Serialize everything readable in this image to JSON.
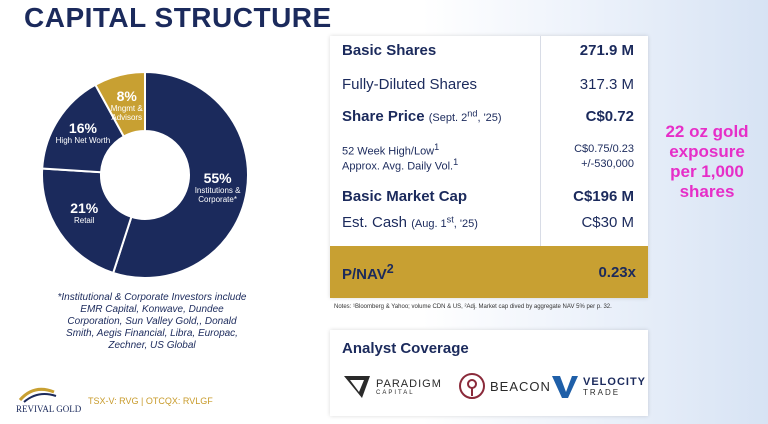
{
  "title": "CAPITAL STRUCTURE",
  "chart_data": {
    "type": "pie",
    "categories": [
      "Institutions & Corporate*",
      "Retail",
      "High Net Worth",
      "Mngmt & Advisors"
    ],
    "values": [
      55,
      21,
      16,
      8
    ],
    "labels": [
      "55%",
      "21%",
      "16%",
      "8%"
    ],
    "colors": [
      "#1b2a5c",
      "#1b2a5c",
      "#1b2a5c",
      "#c8a032"
    ]
  },
  "footnote": "*Institutional & Corporate Investors include EMR Capital, Konwave, Dundee Corporation, Sun Valley Gold,, Donald Smith, Aegis Financial, Libra, Europac, Zechner, US Global",
  "company": {
    "name": "REVIVAL GOLD",
    "ticker": "TSX-V: RVG | OTCQX: RVLGF"
  },
  "table": {
    "basic_shares": {
      "label": "Basic Shares",
      "value": "271.9 M"
    },
    "fd_shares": {
      "label": "Fully-Diluted Shares",
      "value": "317.3 M"
    },
    "share_price": {
      "label": "Share Price",
      "note_pre": "(Sept. 2",
      "note_sup": "nd",
      "note_post": ", '25)",
      "value": "C$0.72"
    },
    "week_high_low": {
      "label": "52 Week High/Low",
      "sup": "1",
      "value": "C$0.75/0.23"
    },
    "avg_volume": {
      "label": "Approx. Avg. Daily Vol.",
      "sup": "1",
      "value": "+/-530,000"
    },
    "market_cap": {
      "label": "Basic Market Cap",
      "value": "C$196 M"
    },
    "cash": {
      "label": "Est. Cash",
      "note_pre": "(Aug. 1",
      "note_sup": "st",
      "note_post": ", '25)",
      "value": "C$30 M"
    },
    "pnav": {
      "label": "P/NAV",
      "sup": "2",
      "value": "0.23x"
    }
  },
  "notes": "Notes: ¹Bloomberg & Yahoo; volume CDN & US, ²Adj. Market cap dived by aggregate NAV 5% per p. 32.",
  "callout": "22 oz gold exposure per 1,000 shares",
  "analyst": {
    "heading": "Analyst Coverage",
    "firms": [
      {
        "name": "PARADIGM",
        "sub": "CAPITAL"
      },
      {
        "name": "BEACON",
        "sub": ""
      },
      {
        "name": "VELOCITY",
        "sub": "TRADE"
      }
    ]
  }
}
